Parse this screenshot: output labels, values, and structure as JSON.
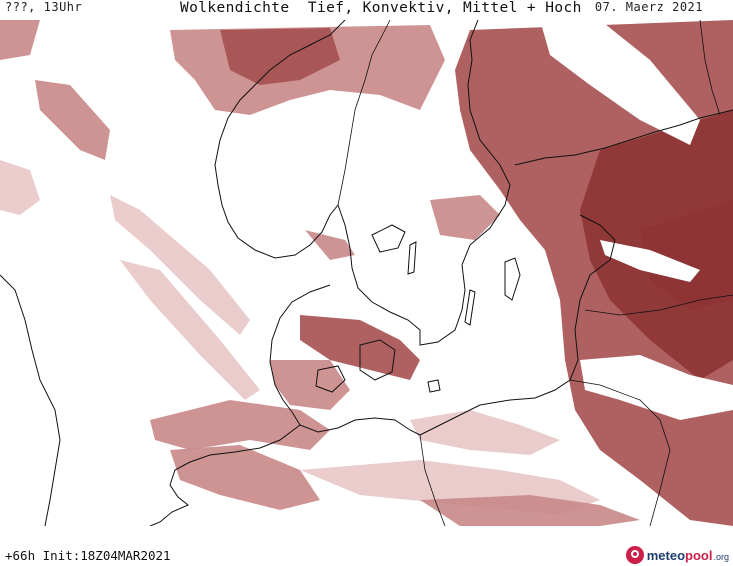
{
  "header": {
    "run_label": "???, 13Uhr",
    "title": "Wolkendichte  Tief, Konvektiv, Mittel + Hoch",
    "date": "07. Maerz 2021"
  },
  "footer": {
    "init_label": "+66h Init:18Z04MAR2021",
    "logo": {
      "part1": "meteo",
      "part2": "pool",
      "suffix": ".org"
    }
  },
  "map": {
    "colors": {
      "light": "#e8c6c6",
      "medium": "#c98888",
      "strong": "#a5504f",
      "dark": "#8e3434",
      "coast": "#111111",
      "background": "#ffffff"
    }
  }
}
